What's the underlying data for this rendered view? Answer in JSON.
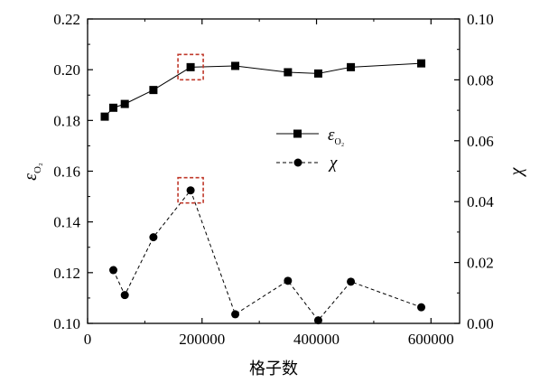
{
  "chart_data": {
    "type": "line",
    "xlabel": "格子数",
    "x_ticks": [
      "0",
      "200000",
      "400000",
      "600000"
    ],
    "x_tick_values": [
      0,
      200000,
      400000,
      600000
    ],
    "xlim": [
      0,
      650000
    ],
    "y_left": {
      "label_symbol": "ε",
      "label_subscript": "O₂",
      "ylim": [
        0.1,
        0.22
      ],
      "ticks": [
        "0.10",
        "0.12",
        "0.14",
        "0.16",
        "0.18",
        "0.20",
        "0.22"
      ],
      "tick_values": [
        0.1,
        0.12,
        0.14,
        0.16,
        0.18,
        0.2,
        0.22
      ]
    },
    "y_right": {
      "label": "χ",
      "ylim": [
        0.0,
        0.1
      ],
      "ticks": [
        "0.00",
        "0.02",
        "0.04",
        "0.06",
        "0.08",
        "0.10"
      ],
      "tick_values": [
        0.0,
        0.02,
        0.04,
        0.06,
        0.08,
        0.1
      ]
    },
    "series": [
      {
        "name_symbol": "ε",
        "name_subscript": "O₂",
        "axis": "left",
        "marker": "square",
        "line_style": "solid",
        "x": [
          30000,
          45000,
          65000,
          115000,
          180000,
          258000,
          350000,
          403000,
          460000,
          583000
        ],
        "y": [
          0.1815,
          0.185,
          0.1865,
          0.192,
          0.201,
          0.2015,
          0.199,
          0.1985,
          0.201,
          0.2025
        ]
      },
      {
        "name": "χ",
        "axis": "right",
        "marker": "circle",
        "line_style": "dashed",
        "x": [
          45000,
          65000,
          115000,
          180000,
          258000,
          350000,
          403000,
          460000,
          583000
        ],
        "y": [
          0.0175,
          0.0093,
          0.0283,
          0.0437,
          0.003,
          0.014,
          0.001,
          0.0137,
          0.0053
        ]
      }
    ],
    "legend_position": "center-right",
    "highlight_color": "#c0392b",
    "highlighted_x": 180000
  }
}
